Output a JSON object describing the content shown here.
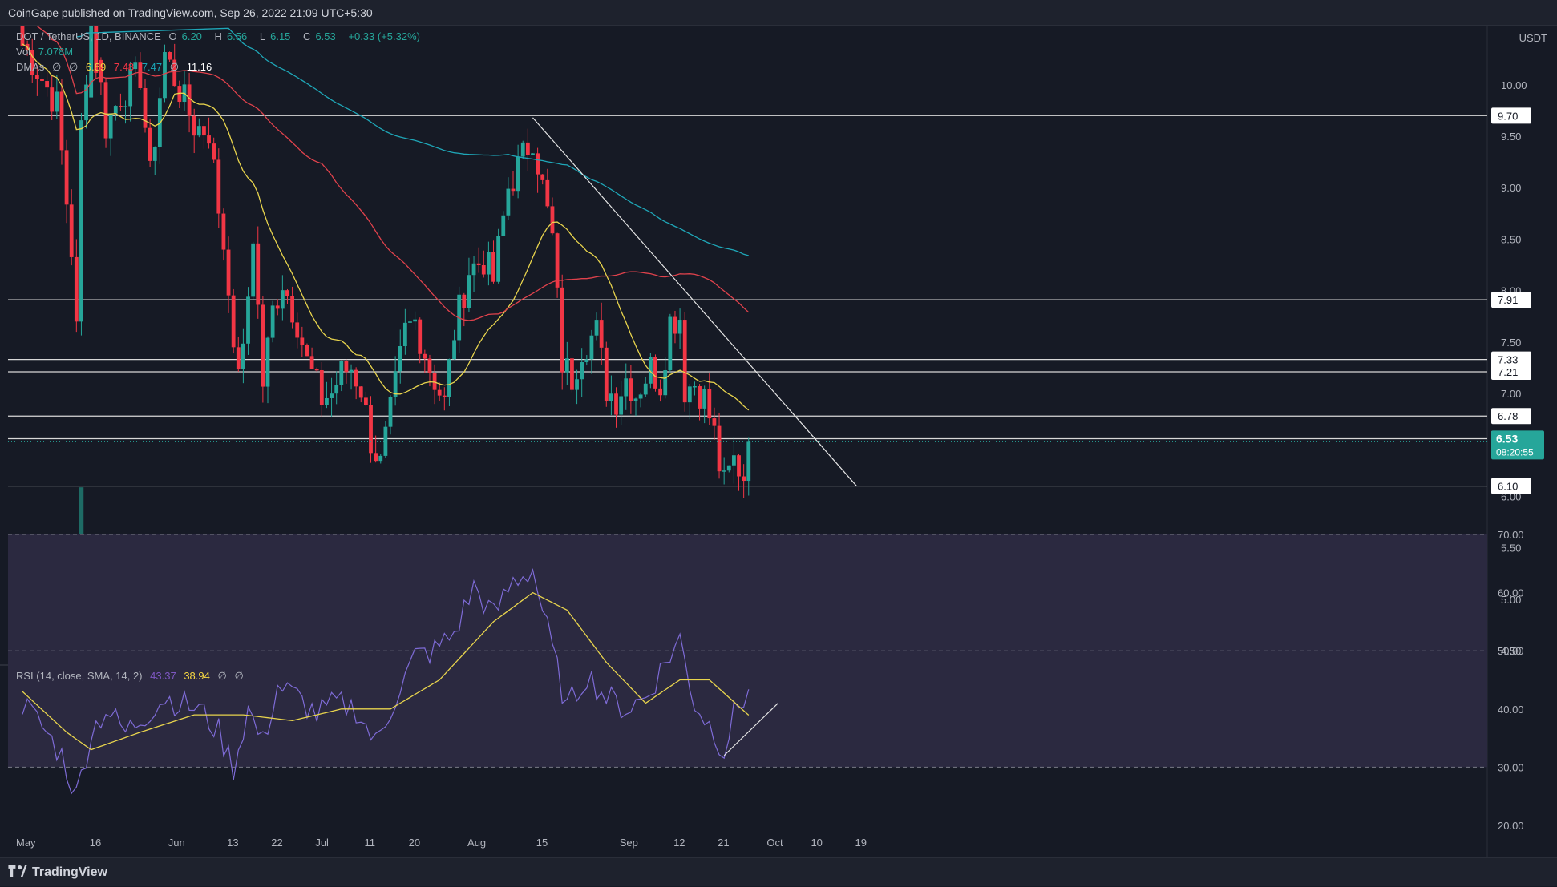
{
  "header": {
    "published": "CoinGape published on TradingView.com, Sep 26, 2022 21:09 UTC+5:30"
  },
  "legend": {
    "symbol": "DOT / TetherUS, 1D, BINANCE",
    "open_label": "O",
    "open": "6.20",
    "high_label": "H",
    "high": "6.56",
    "low_label": "L",
    "low": "6.15",
    "close_label": "C",
    "close": "6.53",
    "change": "+0.33 (+5.32%)",
    "vol_label": "Vol",
    "vol": "7.078M",
    "dmas_label": "DMAs",
    "dmas_d1": "∅",
    "dmas_d2": "∅",
    "dmas_20": "6.89",
    "dmas_50": "7.48",
    "dmas_100": "7.47",
    "dmas_d3": "∅",
    "dmas_200": "11.16",
    "rsi_label": "RSI (14, close, SMA, 14, 2)",
    "rsi": "43.37",
    "rsi_sma": "38.94",
    "rsi_d1": "∅",
    "rsi_d2": "∅"
  },
  "footer": {
    "brand": "TradingView"
  },
  "colors": {
    "bull": "#26a69a",
    "bear": "#f23645",
    "vol_bull": "#1e6b65",
    "vol_bear": "#7a2a33",
    "ma20": "#e8d44d",
    "ma50": "#e0424c",
    "ma100": "#1fa7b8",
    "rsi": "#7e6bd6",
    "rsi_sma": "#e8d44d",
    "rsi_band": "#2b2940"
  },
  "chart_data": {
    "type": "candlestick",
    "pair": "DOT / TetherUS",
    "currency": "USDT",
    "y_ticks": [
      4.5,
      5.0,
      5.5,
      6.0,
      6.5,
      7.0,
      7.5,
      8.0,
      8.5,
      9.0,
      9.5,
      10.0
    ],
    "y_tick_labels": [
      "4.50",
      "5.00",
      "5.50",
      "6.00",
      "6.50",
      "7.00",
      "7.50",
      "8.00",
      "8.50",
      "9.00",
      "9.50",
      "10.00"
    ],
    "x_tick_labels": [
      {
        "label": "May",
        "date": "2022-05-01"
      },
      {
        "label": "16",
        "date": "2022-05-16"
      },
      {
        "label": "Jun",
        "date": "2022-06-01"
      },
      {
        "label": "13",
        "date": "2022-06-13"
      },
      {
        "label": "22",
        "date": "2022-06-22"
      },
      {
        "label": "Jul",
        "date": "2022-07-01"
      },
      {
        "label": "11",
        "date": "2022-07-11"
      },
      {
        "label": "20",
        "date": "2022-07-20"
      },
      {
        "label": "Aug",
        "date": "2022-08-01"
      },
      {
        "label": "15",
        "date": "2022-08-15"
      },
      {
        "label": "Sep",
        "date": "2022-09-01"
      },
      {
        "label": "12",
        "date": "2022-09-12"
      },
      {
        "label": "21",
        "date": "2022-09-21"
      },
      {
        "label": "Oct",
        "date": "2022-10-01"
      },
      {
        "label": "10",
        "date": "2022-10-10"
      },
      {
        "label": "19",
        "date": "2022-10-19"
      }
    ],
    "horizontal_levels": [
      {
        "value": 9.7,
        "label": "9.70"
      },
      {
        "value": 7.91,
        "label": "7.91"
      },
      {
        "value": 7.33,
        "label": "7.33"
      },
      {
        "value": 7.21,
        "label": "7.21"
      },
      {
        "value": 6.78,
        "label": "6.78"
      },
      {
        "value": 6.56,
        "label": "6.56"
      },
      {
        "value": 6.1,
        "label": "6.10"
      }
    ],
    "last_price": {
      "value": 6.53,
      "label": "6.53",
      "countdown": "08:20:55"
    },
    "trendline": {
      "from": {
        "date": "2022-08-13",
        "value": 9.68
      },
      "to": {
        "date": "2022-10-18",
        "value": 6.1
      }
    },
    "closes_segments": [
      [
        "2022-05-01",
        10.4
      ],
      [
        "2022-05-08",
        9.8
      ],
      [
        "2022-05-11",
        8.4
      ],
      [
        "2022-05-12",
        7.6
      ],
      [
        "2022-05-13",
        9.6
      ],
      [
        "2022-05-15",
        10.7
      ],
      [
        "2022-05-18",
        9.6
      ],
      [
        "2022-05-21",
        9.9
      ],
      [
        "2022-05-25",
        10.1
      ],
      [
        "2022-05-27",
        9.1
      ],
      [
        "2022-05-30",
        10.3
      ],
      [
        "2022-06-02",
        9.95
      ],
      [
        "2022-06-05",
        9.6
      ],
      [
        "2022-06-08",
        9.55
      ],
      [
        "2022-06-10",
        8.8
      ],
      [
        "2022-06-12",
        8.1
      ],
      [
        "2022-06-13",
        7.3
      ],
      [
        "2022-06-15",
        7.35
      ],
      [
        "2022-06-17",
        8.55
      ],
      [
        "2022-06-19",
        7.1
      ],
      [
        "2022-06-21",
        7.8
      ],
      [
        "2022-06-23",
        8.1
      ],
      [
        "2022-06-26",
        7.7
      ],
      [
        "2022-06-28",
        7.3
      ],
      [
        "2022-07-01",
        6.95
      ],
      [
        "2022-07-03",
        7.0
      ],
      [
        "2022-07-05",
        7.2
      ],
      [
        "2022-07-07",
        7.25
      ],
      [
        "2022-07-09",
        7.05
      ],
      [
        "2022-07-11",
        6.55
      ],
      [
        "2022-07-13",
        6.3
      ],
      [
        "2022-07-15",
        6.8
      ],
      [
        "2022-07-18",
        7.6
      ],
      [
        "2022-07-20",
        7.7
      ],
      [
        "2022-07-23",
        7.25
      ],
      [
        "2022-07-26",
        6.9
      ],
      [
        "2022-07-28",
        7.6
      ],
      [
        "2022-07-31",
        8.2
      ],
      [
        "2022-08-03",
        8.3
      ],
      [
        "2022-08-05",
        8.1
      ],
      [
        "2022-08-08",
        9.0
      ],
      [
        "2022-08-10",
        9.2
      ],
      [
        "2022-08-13",
        9.5
      ],
      [
        "2022-08-15",
        9.0
      ],
      [
        "2022-08-17",
        8.5
      ],
      [
        "2022-08-19",
        7.3
      ],
      [
        "2022-08-21",
        7.15
      ],
      [
        "2022-08-23",
        7.45
      ],
      [
        "2022-08-26",
        7.6
      ],
      [
        "2022-08-28",
        7.05
      ],
      [
        "2022-08-30",
        6.95
      ],
      [
        "2022-09-01",
        7.15
      ],
      [
        "2022-09-03",
        7.0
      ],
      [
        "2022-09-06",
        7.25
      ],
      [
        "2022-09-08",
        7.1
      ],
      [
        "2022-09-10",
        7.7
      ],
      [
        "2022-09-12",
        7.75
      ],
      [
        "2022-09-13",
        7.05
      ],
      [
        "2022-09-15",
        7.1
      ],
      [
        "2022-09-17",
        6.95
      ],
      [
        "2022-09-19",
        6.6
      ],
      [
        "2022-09-20",
        6.3
      ],
      [
        "2022-09-21",
        6.1
      ],
      [
        "2022-09-23",
        6.35
      ],
      [
        "2022-09-25",
        6.2
      ],
      [
        "2022-09-26",
        6.53
      ]
    ],
    "volume_note": "relative bars",
    "rsi": {
      "y_ticks": [
        20,
        30,
        40,
        50,
        60,
        70
      ],
      "y_tick_labels": [
        "20.00",
        "30.00",
        "40.00",
        "50.00",
        "60.00",
        "70.00"
      ],
      "band": [
        30,
        70
      ],
      "middle": 50,
      "values": [
        [
          "2022-05-01",
          41
        ],
        [
          "2022-05-05",
          37
        ],
        [
          "2022-05-09",
          32
        ],
        [
          "2022-05-12",
          25
        ],
        [
          "2022-05-15",
          36
        ],
        [
          "2022-05-18",
          40
        ],
        [
          "2022-05-22",
          36
        ],
        [
          "2022-05-26",
          39
        ],
        [
          "2022-05-30",
          42
        ],
        [
          "2022-06-02",
          41
        ],
        [
          "2022-06-06",
          40
        ],
        [
          "2022-06-10",
          36
        ],
        [
          "2022-06-13",
          30
        ],
        [
          "2022-06-16",
          40
        ],
        [
          "2022-06-19",
          34
        ],
        [
          "2022-06-22",
          44
        ],
        [
          "2022-06-26",
          42
        ],
        [
          "2022-06-30",
          39
        ],
        [
          "2022-07-04",
          41
        ],
        [
          "2022-07-08",
          40
        ],
        [
          "2022-07-12",
          34
        ],
        [
          "2022-07-16",
          42
        ],
        [
          "2022-07-20",
          49
        ],
        [
          "2022-07-24",
          50
        ],
        [
          "2022-07-28",
          53
        ],
        [
          "2022-08-01",
          61
        ],
        [
          "2022-08-05",
          56
        ],
        [
          "2022-08-09",
          62
        ],
        [
          "2022-08-13",
          64
        ],
        [
          "2022-08-17",
          50
        ],
        [
          "2022-08-20",
          40
        ],
        [
          "2022-08-24",
          46
        ],
        [
          "2022-08-28",
          42
        ],
        [
          "2022-09-01",
          40
        ],
        [
          "2022-09-05",
          42
        ],
        [
          "2022-09-09",
          48
        ],
        [
          "2022-09-12",
          52
        ],
        [
          "2022-09-15",
          41
        ],
        [
          "2022-09-19",
          36
        ],
        [
          "2022-09-21",
          33
        ],
        [
          "2022-09-23",
          39
        ],
        [
          "2022-09-26",
          43.37
        ]
      ],
      "sma_values": [
        [
          "2022-05-01",
          43
        ],
        [
          "2022-05-10",
          36
        ],
        [
          "2022-05-15",
          33
        ],
        [
          "2022-05-25",
          36
        ],
        [
          "2022-06-05",
          39
        ],
        [
          "2022-06-15",
          39
        ],
        [
          "2022-06-25",
          38
        ],
        [
          "2022-07-05",
          40
        ],
        [
          "2022-07-15",
          40
        ],
        [
          "2022-07-25",
          45
        ],
        [
          "2022-08-05",
          55
        ],
        [
          "2022-08-13",
          60
        ],
        [
          "2022-08-20",
          57
        ],
        [
          "2022-08-28",
          48
        ],
        [
          "2022-09-05",
          41
        ],
        [
          "2022-09-12",
          45
        ],
        [
          "2022-09-18",
          45
        ],
        [
          "2022-09-26",
          38.94
        ]
      ],
      "divergence_line": {
        "from": {
          "date": "2022-09-21",
          "value": 32
        },
        "to": {
          "date": "2022-10-02",
          "value": 41
        }
      }
    }
  }
}
